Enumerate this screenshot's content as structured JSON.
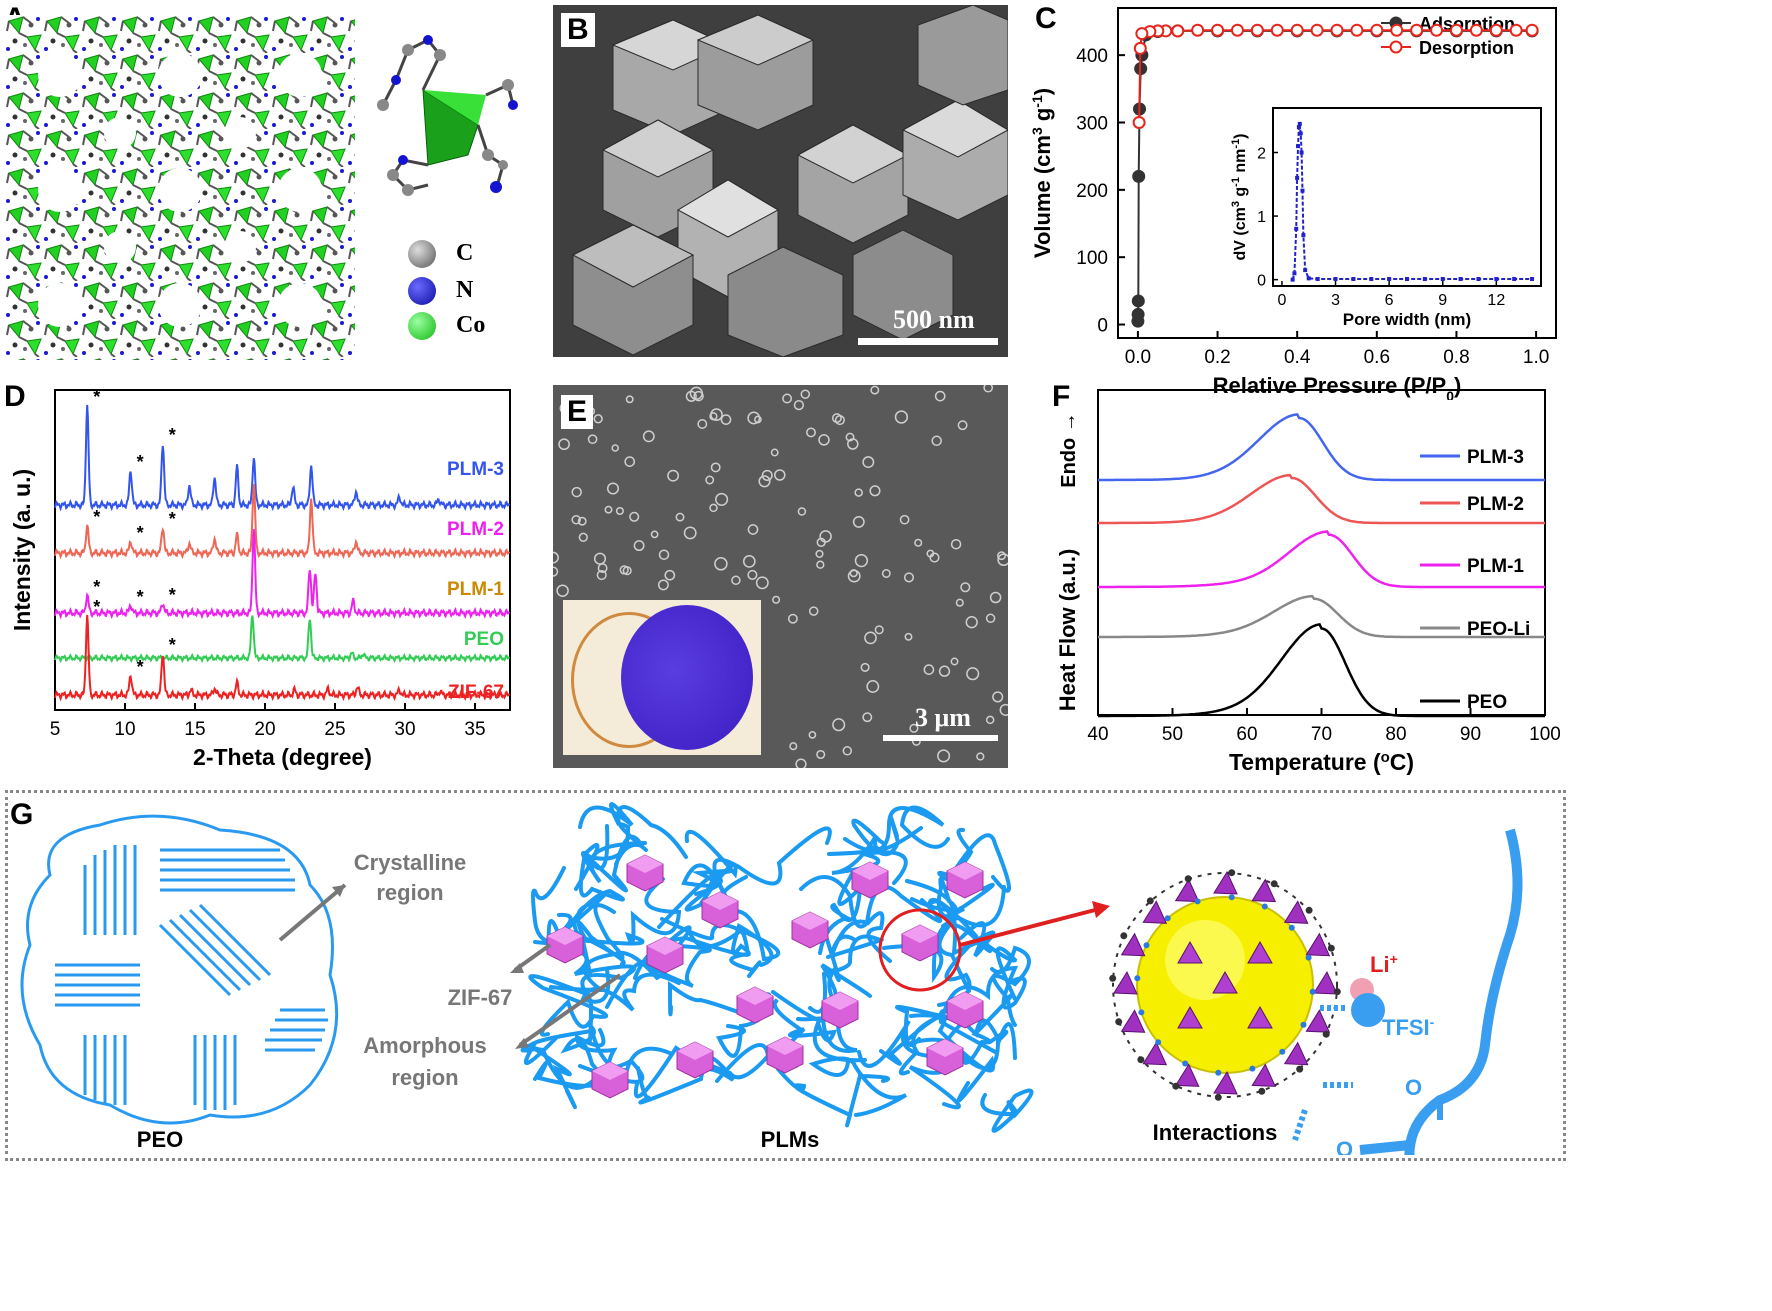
{
  "panels": {
    "A": {
      "letter": "A",
      "legend": [
        {
          "label": "C",
          "color": "#7a7a7a"
        },
        {
          "label": "N",
          "color": "#1414d0"
        },
        {
          "label": "Co",
          "color": "#22dd22"
        }
      ]
    },
    "B": {
      "letter": "B",
      "scale_bar": "500 nm"
    },
    "C": {
      "letter": "C"
    },
    "D": {
      "letter": "D"
    },
    "E": {
      "letter": "E",
      "scale_bar": "3 μm"
    },
    "F": {
      "letter": "F"
    },
    "G": {
      "letter": "G",
      "labels": {
        "peo": "PEO",
        "plms": "PLMs",
        "interactions": "Interactions",
        "crystalline_1": "Crystalline",
        "crystalline_2": "region",
        "zif": "ZIF-67",
        "amorphous_1": "Amorphous",
        "amorphous_2": "region",
        "li": "Li",
        "li_sup": "+",
        "tfsi": "TFSI",
        "tfsi_sup": "-",
        "o1": "O",
        "o2": "O"
      }
    }
  },
  "chart_data": [
    {
      "panel": "C",
      "type": "line",
      "xlabel": "Relative Pressure (P/P0)",
      "ylabel": "Volume (cm3 g-1)",
      "xlim": [
        -0.05,
        1.05
      ],
      "ylim": [
        -20,
        470
      ],
      "xticks": [
        "0.0",
        "0.2",
        "0.4",
        "0.6",
        "0.8",
        "1.0"
      ],
      "yticks": [
        "0",
        "100",
        "200",
        "300",
        "400"
      ],
      "legend_position": "top-right",
      "series": [
        {
          "name": "Adsorption",
          "color": "#333333",
          "x": [
            0.0,
            0.0005,
            0.001,
            0.002,
            0.004,
            0.007,
            0.01,
            0.02,
            0.05,
            0.1,
            0.2,
            0.3,
            0.4,
            0.5,
            0.6,
            0.7,
            0.8,
            0.9,
            0.99
          ],
          "y": [
            5,
            15,
            35,
            220,
            320,
            380,
            400,
            430,
            435,
            436,
            436,
            436,
            436,
            436,
            436,
            436,
            436,
            436,
            436
          ]
        },
        {
          "name": "Desorption",
          "color": "#e8251c",
          "x": [
            0.99,
            0.95,
            0.9,
            0.85,
            0.8,
            0.75,
            0.7,
            0.65,
            0.6,
            0.55,
            0.5,
            0.45,
            0.4,
            0.35,
            0.3,
            0.25,
            0.2,
            0.15,
            0.1,
            0.07,
            0.05,
            0.03,
            0.01,
            0.006,
            0.003
          ],
          "y": [
            437,
            437,
            437,
            437,
            437,
            437,
            437,
            437,
            437,
            437,
            437,
            437,
            437,
            437,
            437,
            437,
            437,
            437,
            436,
            436,
            436,
            435,
            432,
            410,
            300
          ]
        }
      ],
      "inset": {
        "type": "line",
        "xlabel": "Pore width (nm)",
        "ylabel": "dV (cm3 g-1 nm-1)",
        "xlim": [
          -0.5,
          14.5
        ],
        "ylim": [
          -0.1,
          2.7
        ],
        "xticks": [
          "0",
          "3",
          "6",
          "9",
          "12"
        ],
        "yticks": [
          "0",
          "1",
          "2"
        ],
        "color": "#2222cc",
        "x": [
          0.6,
          0.7,
          0.8,
          0.85,
          0.9,
          0.95,
          1.0,
          1.05,
          1.1,
          1.15,
          1.2,
          1.3,
          1.5,
          2,
          3,
          4,
          5,
          6,
          7,
          8,
          9,
          10,
          11,
          12,
          13,
          14
        ],
        "y": [
          0,
          0.1,
          0.8,
          1.6,
          2.1,
          2.4,
          2.45,
          2.3,
          2.0,
          1.4,
          0.7,
          0.15,
          0.02,
          0.01,
          0.01,
          0.01,
          0.01,
          0.01,
          0.01,
          0.01,
          0.01,
          0.01,
          0.01,
          0.01,
          0.01,
          0.01
        ]
      }
    },
    {
      "panel": "D",
      "type": "line",
      "xlabel": "2-Theta (degree)",
      "ylabel": "Intensity (a. u.)",
      "xlim": [
        5,
        37.5
      ],
      "xticks": [
        "5",
        "10",
        "15",
        "20",
        "25",
        "30",
        "35"
      ],
      "series": [
        {
          "name": "PLM-3",
          "color": "#3355ee",
          "peaks": [
            [
              7.3,
              1.0
            ],
            [
              10.4,
              0.35
            ],
            [
              12.7,
              0.62
            ],
            [
              14.6,
              0.2
            ],
            [
              16.4,
              0.28
            ],
            [
              18.0,
              0.38
            ],
            [
              19.2,
              0.48
            ],
            [
              22.0,
              0.18
            ],
            [
              23.3,
              0.4
            ],
            [
              26.5,
              0.14
            ],
            [
              29.6,
              0.08
            ],
            [
              32.4,
              0.06
            ]
          ]
        },
        {
          "name": "PLM-2",
          "color": "#ee6655",
          "peaks": [
            [
              7.3,
              0.28
            ],
            [
              10.4,
              0.12
            ],
            [
              12.7,
              0.26
            ],
            [
              14.6,
              0.1
            ],
            [
              16.4,
              0.15
            ],
            [
              18.0,
              0.18
            ],
            [
              19.2,
              0.7
            ],
            [
              23.3,
              0.55
            ],
            [
              26.5,
              0.12
            ]
          ]
        },
        {
          "name": "PLM-1",
          "color": "#ee22ee",
          "peaks": [
            [
              7.3,
              0.18
            ],
            [
              10.4,
              0.08
            ],
            [
              12.7,
              0.1
            ],
            [
              19.2,
              0.85
            ],
            [
              23.2,
              0.45
            ],
            [
              23.6,
              0.4
            ],
            [
              26.3,
              0.12
            ]
          ]
        },
        {
          "name": "PEO",
          "color": "#33cc55",
          "peaks": [
            [
              19.1,
              0.55
            ],
            [
              23.2,
              0.5
            ],
            [
              26.2,
              0.06
            ],
            [
              27.0,
              0.05
            ]
          ]
        },
        {
          "name": "ZIF-67",
          "color": "#ee2222",
          "peaks": [
            [
              7.3,
              0.8
            ],
            [
              10.4,
              0.2
            ],
            [
              12.7,
              0.42
            ],
            [
              14.7,
              0.05
            ],
            [
              16.4,
              0.07
            ],
            [
              18.0,
              0.12
            ],
            [
              22.1,
              0.05
            ],
            [
              24.5,
              0.06
            ],
            [
              26.6,
              0.08
            ],
            [
              29.6,
              0.05
            ],
            [
              32.5,
              0.04
            ]
          ]
        }
      ],
      "annotation": "*"
    },
    {
      "panel": "F",
      "type": "line",
      "xlabel": "Temperature (oC)",
      "ylabel": "Heat Flow (a.u.)",
      "ylabel_top": "Endo →",
      "xlim": [
        40,
        100
      ],
      "xticks": [
        "40",
        "50",
        "60",
        "70",
        "80",
        "90",
        "100"
      ],
      "series": [
        {
          "name": "PLM-3",
          "color": "#4466ee",
          "peak_T": 67,
          "height": 1.0
        },
        {
          "name": "PLM-2",
          "color": "#ee5555",
          "peak_T": 66,
          "height": 0.9
        },
        {
          "name": "PLM-1",
          "color": "#ee22ee",
          "peak_T": 71,
          "height": 0.95
        },
        {
          "name": "PEO-Li",
          "color": "#888888",
          "peak_T": 69,
          "height": 0.85
        },
        {
          "name": "PEO",
          "color": "#000000",
          "peak_T": 70,
          "height": 1.25
        }
      ]
    }
  ]
}
